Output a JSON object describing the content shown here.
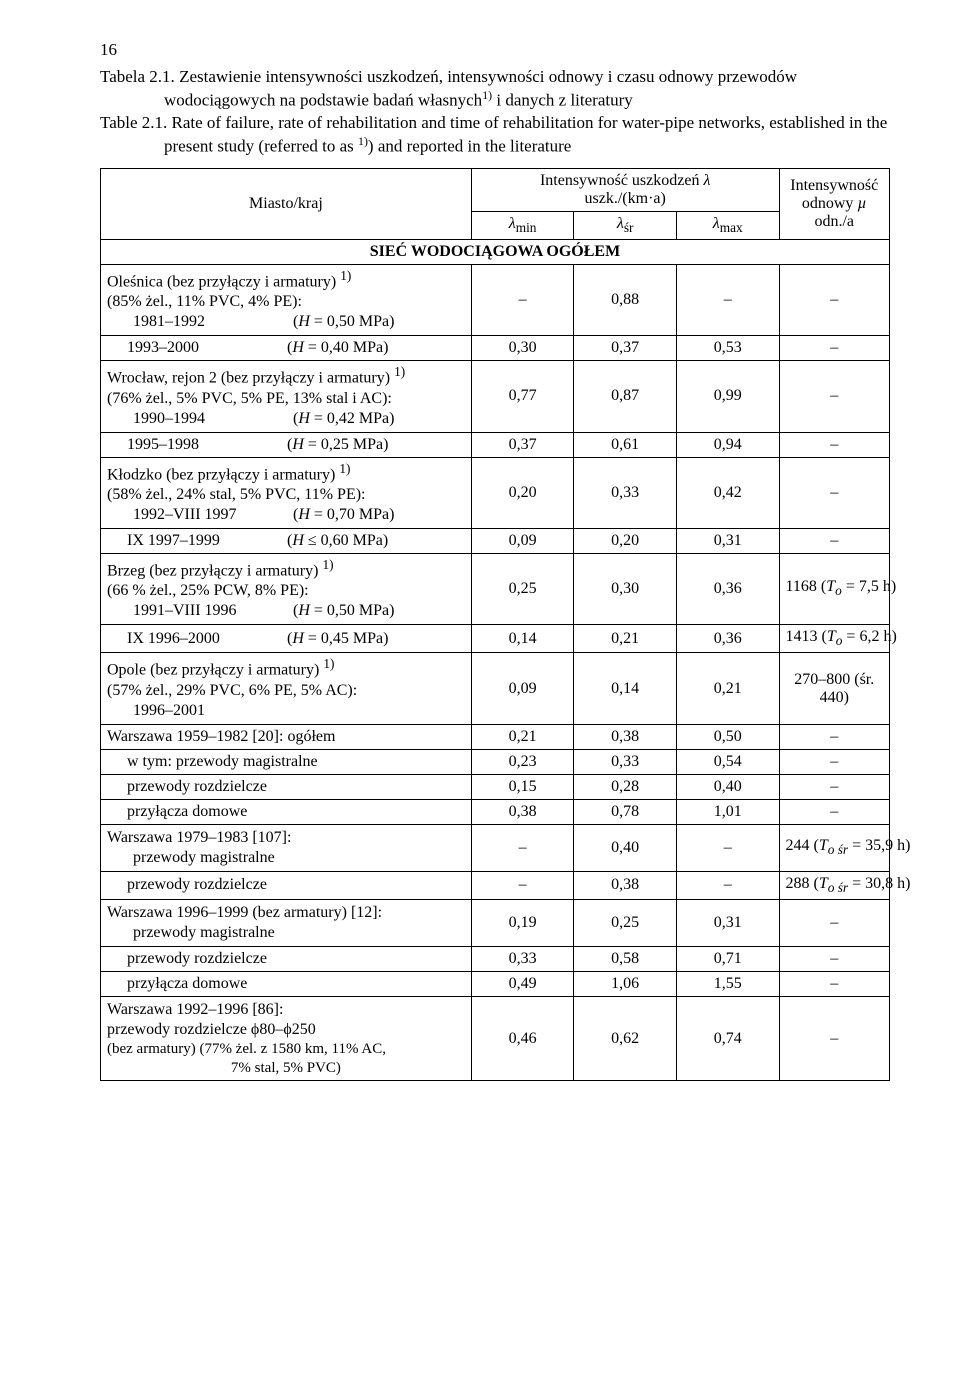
{
  "page_number": "16",
  "caption_a_label": "Tabela 2.1.",
  "caption_a_text": "Zestawienie intensywności uszkodzeń, intensywności odnowy i czasu odnowy przewodów wodociągowych na podstawie badań własnych",
  "caption_a_sup": "1)",
  "caption_a_text2": " i danych z literatury",
  "caption_b_label": "Table 2.1.",
  "caption_b_text": "Rate of failure, rate of rehabilitation and time of rehabilitation for water-pipe networks, established in the present study (referred to as ",
  "caption_b_sup": "1)",
  "caption_b_text2": ") and reported in the literature",
  "header_col0": "Miasto/kraj",
  "header_intensywnosc_uszk_l1": "Intensywność uszkodzeń ",
  "header_intensywnosc_uszk_sym": "λ",
  "header_intensywnosc_uszk_l2": "uszk./(km·a)",
  "header_lmin": "λ",
  "header_lmin_sub": "min",
  "header_lsr": "λ",
  "header_lsr_sub": "śr",
  "header_lmax": "λ",
  "header_lmax_sub": "max",
  "header_odnowy_l1": "Intensywność",
  "header_odnowy_l2": "odnowy ",
  "header_odnowy_sym": "µ",
  "header_odnowy_l3": "odn./a",
  "section1": "SIEĆ WODOCIĄGOWA OGÓŁEM",
  "groups": [
    {
      "head_main": "Oleśnica (bez przyłączy i armatury) ",
      "head_sup": "1)",
      "head_detail": "(85% żel., 11% PVC, 4% PE):",
      "rows": [
        {
          "l1": "1981–1992",
          "l2": "(",
          "it": "H",
          "tail": " = 0,50 MPa)",
          "c1": "–",
          "c2": "0,88",
          "c3": "–",
          "c4": "–"
        },
        {
          "l1": "1993–2000",
          "l2": "(",
          "it": "H",
          "tail": " = 0,40 MPa)",
          "c1": "0,30",
          "c2": "0,37",
          "c3": "0,53",
          "c4": "–"
        }
      ]
    },
    {
      "head_main": "Wrocław, rejon 2 (bez przyłączy i armatury) ",
      "head_sup": "1)",
      "head_detail": "(76% żel., 5% PVC, 5% PE, 13% stal i AC):",
      "rows": [
        {
          "l1": "1990–1994",
          "l2": "(",
          "it": "H",
          "tail": " = 0,42 MPa)",
          "c1": "0,77",
          "c2": "0,87",
          "c3": "0,99",
          "c4": "–"
        },
        {
          "l1": "1995–1998",
          "l2": "(",
          "it": "H",
          "tail": " = 0,25 MPa)",
          "c1": "0,37",
          "c2": "0,61",
          "c3": "0,94",
          "c4": "–"
        }
      ]
    },
    {
      "head_main": "Kłodzko (bez przyłączy i armatury) ",
      "head_sup": "1)",
      "head_detail": "(58% żel., 24% stal, 5% PVC, 11% PE):",
      "rows": [
        {
          "l1": "1992–VIII 1997",
          "l2": "(",
          "it": "H",
          "tail": " = 0,70 MPa)",
          "c1": "0,20",
          "c2": "0,33",
          "c3": "0,42",
          "c4": "–"
        },
        {
          "l1": "IX 1997–1999",
          "l2": "(",
          "it": "H",
          "tail": " ≤ 0,60 MPa)",
          "c1": "0,09",
          "c2": "0,20",
          "c3": "0,31",
          "c4": "–"
        }
      ]
    },
    {
      "head_main": "Brzeg (bez przyłączy i armatury) ",
      "head_sup": "1)",
      "head_detail": "(66 % żel., 25% PCW, 8% PE):",
      "rows": [
        {
          "l1": "1991–VIII 1996",
          "l2": "(",
          "it": "H",
          "tail": " = 0,50 MPa)",
          "c1": "0,25",
          "c2": "0,30",
          "c3": "0,36",
          "c4_pre": "1168 (",
          "c4_it": "T",
          "c4_sub": "o",
          "c4_post": " = 7,5 h)"
        },
        {
          "l1": "IX 1996–2000",
          "l2": "(",
          "it": "H",
          "tail": " = 0,45 MPa)",
          "c1": "0,14",
          "c2": "0,21",
          "c3": "0,36",
          "c4_pre": "1413 (",
          "c4_it": "T",
          "c4_sub": "o",
          "c4_post": " = 6,2 h)"
        }
      ]
    },
    {
      "head_main": "Opole (bez przyłączy i armatury) ",
      "head_sup": "1)",
      "head_detail": "(57% żel., 29% PVC, 6% PE, 5% AC):",
      "rows": [
        {
          "l1": "1996–2001",
          "l2": "",
          "it": "",
          "tail": "",
          "c1": "0,09",
          "c2": "0,14",
          "c3": "0,21",
          "c4": "270–800 (śr. 440)"
        }
      ]
    }
  ],
  "warszawa1": {
    "head": "Warszawa 1959–1982 [20]: ogółem",
    "c1": "0,21",
    "c2": "0,38",
    "c3": "0,50",
    "c4": "–",
    "rows": [
      {
        "label": "w tym: przewody magistralne",
        "c1": "0,23",
        "c2": "0,33",
        "c3": "0,54",
        "c4": "–"
      },
      {
        "label": "przewody rozdzielcze",
        "c1": "0,15",
        "c2": "0,28",
        "c3": "0,40",
        "c4": "–"
      },
      {
        "label": "przyłącza domowe",
        "c1": "0,38",
        "c2": "0,78",
        "c3": "1,01",
        "c4": "–"
      }
    ]
  },
  "warszawa2": {
    "head": "Warszawa 1979–1983 [107]:",
    "rows": [
      {
        "label": "przewody magistralne",
        "c1": "–",
        "c2": "0,40",
        "c3": "–",
        "c4_pre": "244 (",
        "c4_it": "T",
        "c4_sub": "o śr",
        "c4_post": " = 35,9 h)"
      },
      {
        "label": "przewody rozdzielcze",
        "c1": "–",
        "c2": "0,38",
        "c3": "–",
        "c4_pre": "288 (",
        "c4_it": "T",
        "c4_sub": "o śr",
        "c4_post": " = 30,8 h)"
      }
    ]
  },
  "warszawa3": {
    "head": "Warszawa 1996–1999 (bez armatury) [12]:",
    "rows": [
      {
        "label": "przewody magistralne",
        "c1": "0,19",
        "c2": "0,25",
        "c3": "0,31",
        "c4": "–"
      },
      {
        "label": "przewody rozdzielcze",
        "c1": "0,33",
        "c2": "0,58",
        "c3": "0,71",
        "c4": "–"
      },
      {
        "label": "przyłącza domowe",
        "c1": "0,49",
        "c2": "1,06",
        "c3": "1,55",
        "c4": "–"
      }
    ]
  },
  "warszawa4": {
    "head": "Warszawa 1992–1996 [86]:",
    "sub1": "przewody rozdzielcze ϕ80–ϕ250",
    "sub2_pre": "(bez armatury) (77% żel. z 1580 km, 11% AC,",
    "sub2_post": "7% stal, 5% PVC)",
    "c1": "0,46",
    "c2": "0,62",
    "c3": "0,74",
    "c4": "–"
  }
}
